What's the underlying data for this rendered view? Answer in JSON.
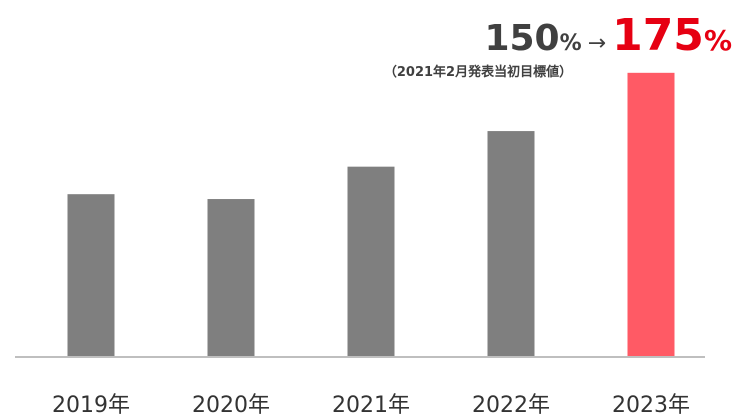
{
  "chart_data": {
    "type": "bar",
    "categories": [
      "2019年",
      "2020年",
      "2021年",
      "2022年",
      "2023年"
    ],
    "values": [
      100,
      97,
      117,
      139,
      175
    ],
    "colors": [
      "#7f7f7f",
      "#7f7f7f",
      "#7f7f7f",
      "#7f7f7f",
      "#ff5a65"
    ],
    "ylim": [
      0,
      220
    ],
    "annotation": {
      "from": "150",
      "from_unit": "%",
      "arrow": "→",
      "to": "175",
      "to_unit": "%",
      "note": "（2021年2月発表当初目標値）"
    }
  }
}
